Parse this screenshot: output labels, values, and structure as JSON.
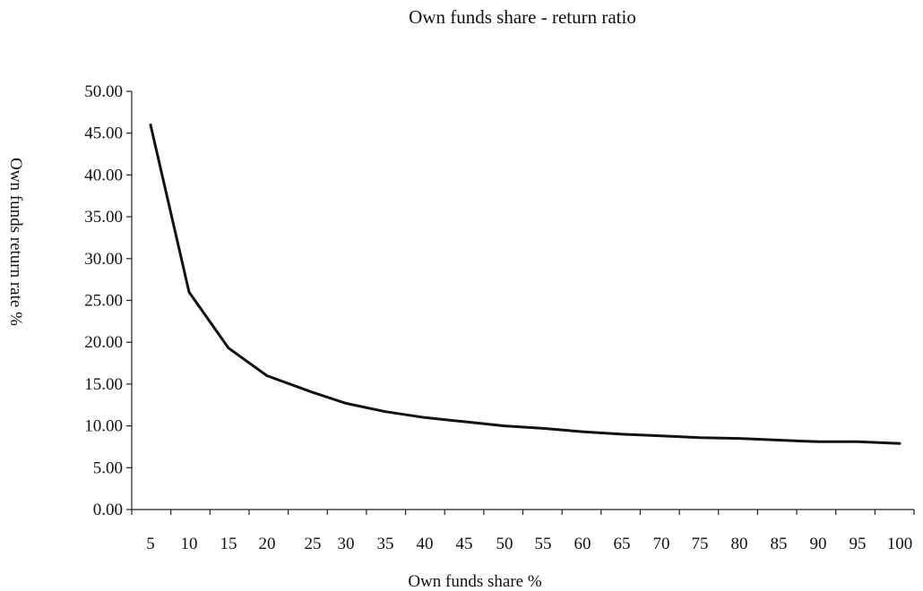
{
  "chart_data": {
    "type": "line",
    "title": "Own funds share - return ratio",
    "xlabel": "Own funds share %",
    "ylabel": "Own funds return rate %",
    "ylim": [
      0,
      50
    ],
    "yticks": [
      "0.00",
      "5.00",
      "10.00",
      "15.00",
      "20.00",
      "25.00",
      "30.00",
      "35.00",
      "40.00",
      "45.00",
      "50.00"
    ],
    "categories": [
      "5",
      "10",
      "15",
      "20",
      "25",
      "30",
      "35",
      "40",
      "45",
      "50",
      "55",
      "60",
      "65",
      "70",
      "75",
      "80",
      "85",
      "90",
      "95",
      "100"
    ],
    "series": [
      {
        "values": [
          46.0,
          26.0,
          19.3,
          16.0,
          14.0,
          12.7,
          11.7,
          11.0,
          10.5,
          10.0,
          9.7,
          9.3,
          9.0,
          8.8,
          8.6,
          8.5,
          8.3,
          8.1,
          8.1,
          7.9
        ]
      }
    ],
    "grid": false,
    "legend": "none",
    "line_color": "#111111"
  }
}
